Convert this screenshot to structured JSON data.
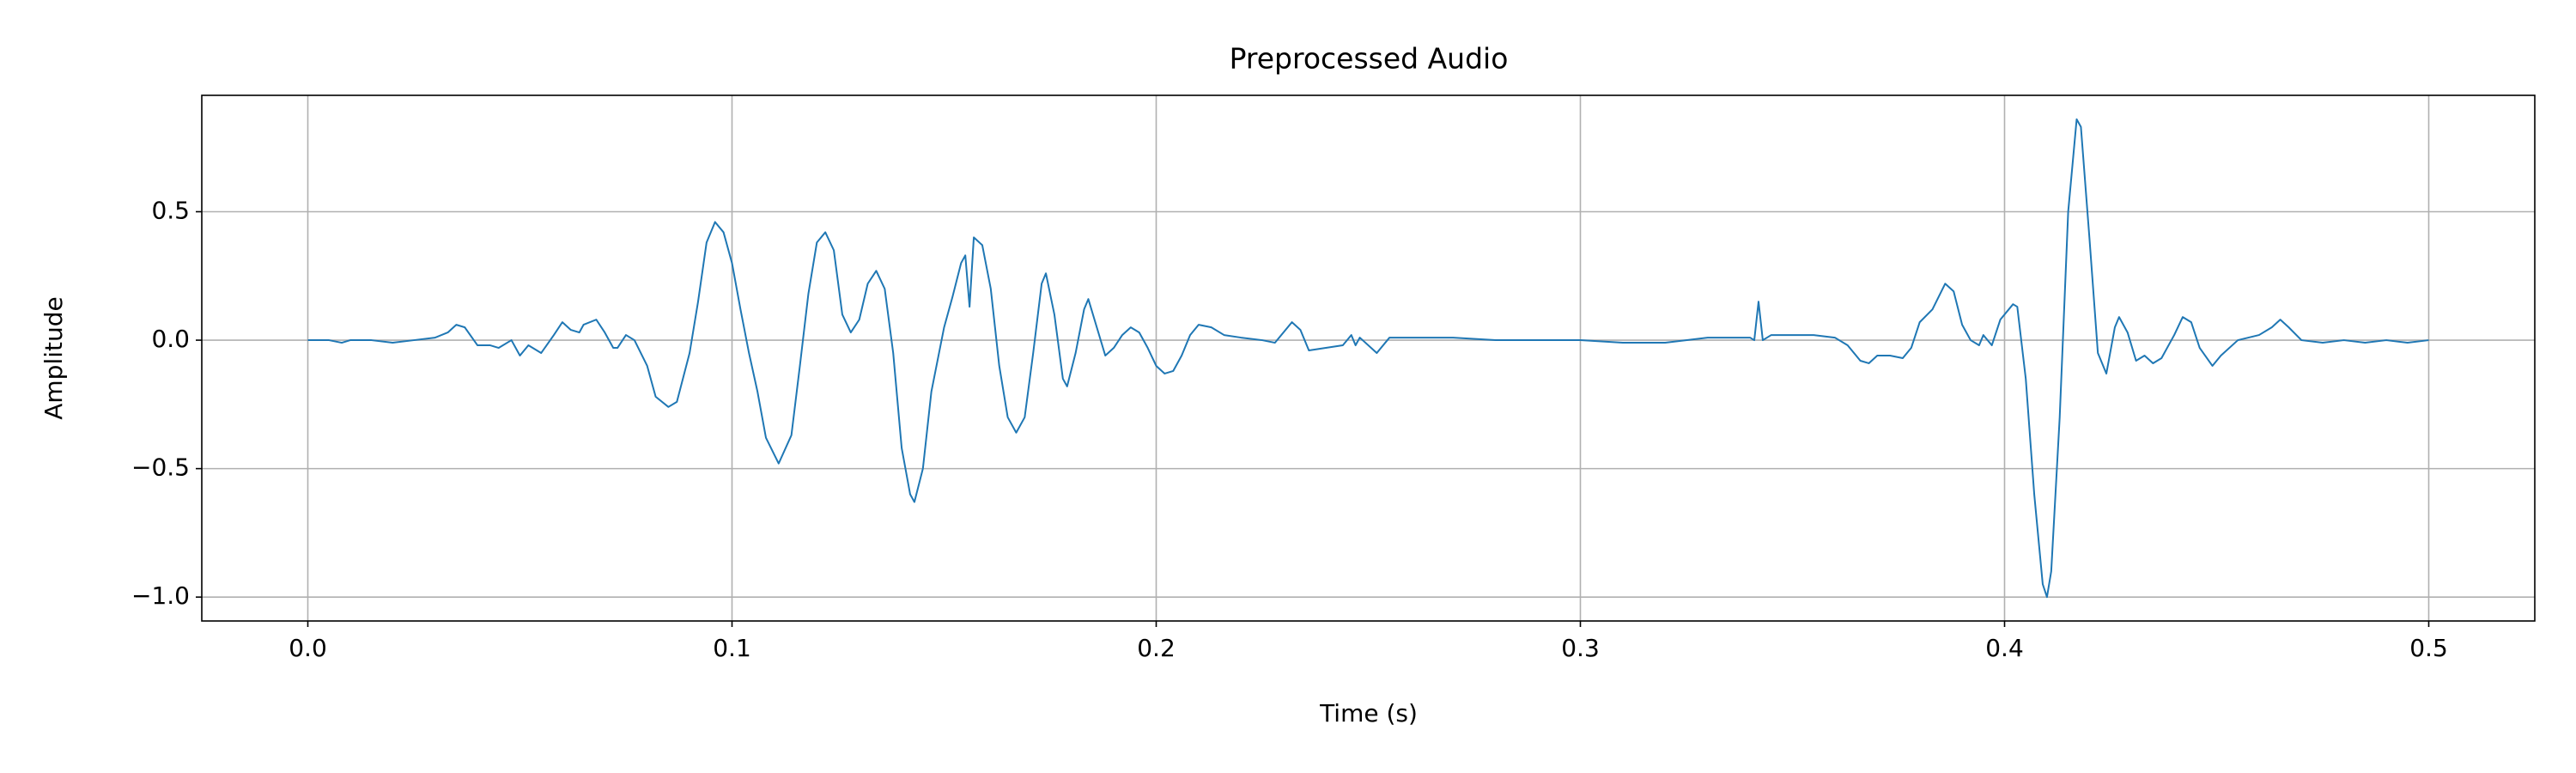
{
  "chart_data": {
    "type": "line",
    "title": "Preprocessed Audio",
    "xlabel": "Time (s)",
    "ylabel": "Amplitude",
    "color": "#1f77b4",
    "grid": true,
    "xlim": [
      -0.025,
      0.525
    ],
    "ylim": [
      -1.093,
      0.953
    ],
    "xticks": [
      {
        "value": 0,
        "label": "0.0"
      },
      {
        "value": 0.1,
        "label": "0.1"
      },
      {
        "value": 0.2,
        "label": "0.2"
      },
      {
        "value": 0.3,
        "label": "0.3"
      },
      {
        "value": 0.4,
        "label": "0.4"
      },
      {
        "value": 0.5,
        "label": "0.5"
      }
    ],
    "yticks": [
      {
        "value": -1,
        "label": "−1.0"
      },
      {
        "value": -0.5,
        "label": "−0.5"
      },
      {
        "value": 0,
        "label": "0.0"
      },
      {
        "value": 0.5,
        "label": "0.5"
      }
    ],
    "x": [
      0.0,
      0.005,
      0.008,
      0.01,
      0.015,
      0.02,
      0.025,
      0.03,
      0.033,
      0.035,
      0.037,
      0.04,
      0.043,
      0.045,
      0.048,
      0.05,
      0.052,
      0.055,
      0.058,
      0.06,
      0.062,
      0.064,
      0.065,
      0.068,
      0.07,
      0.072,
      0.073,
      0.075,
      0.077,
      0.08,
      0.082,
      0.085,
      0.087,
      0.09,
      0.092,
      0.094,
      0.096,
      0.098,
      0.1,
      0.102,
      0.104,
      0.106,
      0.108,
      0.111,
      0.114,
      0.116,
      0.118,
      0.12,
      0.122,
      0.124,
      0.126,
      0.128,
      0.13,
      0.132,
      0.134,
      0.136,
      0.138,
      0.14,
      0.142,
      0.143,
      0.145,
      0.147,
      0.15,
      0.152,
      0.154,
      0.155,
      0.156,
      0.157,
      0.159,
      0.161,
      0.163,
      0.165,
      0.167,
      0.169,
      0.171,
      0.173,
      0.174,
      0.176,
      0.178,
      0.179,
      0.181,
      0.183,
      0.184,
      0.186,
      0.188,
      0.19,
      0.192,
      0.194,
      0.196,
      0.198,
      0.2,
      0.202,
      0.204,
      0.206,
      0.208,
      0.21,
      0.213,
      0.216,
      0.22,
      0.225,
      0.228,
      0.232,
      0.234,
      0.236,
      0.24,
      0.244,
      0.246,
      0.247,
      0.248,
      0.252,
      0.255,
      0.26,
      0.27,
      0.28,
      0.29,
      0.3,
      0.31,
      0.32,
      0.33,
      0.34,
      0.341,
      0.342,
      0.343,
      0.345,
      0.35,
      0.355,
      0.36,
      0.363,
      0.366,
      0.368,
      0.37,
      0.373,
      0.376,
      0.378,
      0.38,
      0.383,
      0.386,
      0.388,
      0.39,
      0.392,
      0.394,
      0.395,
      0.397,
      0.399,
      0.402,
      0.403,
      0.405,
      0.407,
      0.409,
      0.41,
      0.411,
      0.413,
      0.415,
      0.417,
      0.418,
      0.42,
      0.422,
      0.424,
      0.426,
      0.427,
      0.429,
      0.431,
      0.433,
      0.435,
      0.437,
      0.44,
      0.442,
      0.444,
      0.446,
      0.449,
      0.451,
      0.455,
      0.46,
      0.463,
      0.465,
      0.467,
      0.47,
      0.475,
      0.48,
      0.485,
      0.49,
      0.495,
      0.5
    ],
    "values": [
      0,
      0,
      -0.01,
      0,
      0,
      -0.01,
      0,
      0.01,
      0.03,
      0.06,
      0.05,
      -0.02,
      -0.02,
      -0.03,
      0,
      -0.06,
      -0.02,
      -0.05,
      0.02,
      0.07,
      0.04,
      0.03,
      0.06,
      0.08,
      0.03,
      -0.03,
      -0.03,
      0.02,
      0,
      -0.1,
      -0.22,
      -0.26,
      -0.24,
      -0.05,
      0.15,
      0.38,
      0.46,
      0.42,
      0.3,
      0.12,
      -0.05,
      -0.2,
      -0.38,
      -0.48,
      -0.37,
      -0.1,
      0.18,
      0.38,
      0.42,
      0.35,
      0.1,
      0.03,
      0.08,
      0.22,
      0.27,
      0.2,
      -0.05,
      -0.42,
      -0.6,
      -0.63,
      -0.5,
      -0.2,
      0.05,
      0.17,
      0.3,
      0.33,
      0.13,
      0.4,
      0.37,
      0.2,
      -0.1,
      -0.3,
      -0.36,
      -0.3,
      -0.05,
      0.22,
      0.26,
      0.1,
      -0.15,
      -0.18,
      -0.05,
      0.12,
      0.16,
      0.05,
      -0.06,
      -0.03,
      0.02,
      0.05,
      0.03,
      -0.03,
      -0.1,
      -0.13,
      -0.12,
      -0.06,
      0.02,
      0.06,
      0.05,
      0.02,
      0.01,
      0,
      -0.01,
      0.07,
      0.04,
      -0.04,
      -0.03,
      -0.02,
      0.02,
      -0.02,
      0.01,
      -0.05,
      0.01,
      0.01,
      0.01,
      0,
      0,
      0,
      -0.01,
      -0.01,
      0.01,
      0.01,
      0,
      0.15,
      0,
      0.02,
      0.02,
      0.02,
      0.01,
      -0.02,
      -0.08,
      -0.09,
      -0.06,
      -0.06,
      -0.07,
      -0.03,
      0.07,
      0.12,
      0.22,
      0.19,
      0.06,
      0,
      -0.02,
      0.02,
      -0.02,
      0.08,
      0.14,
      0.13,
      -0.15,
      -0.6,
      -0.95,
      -1.0,
      -0.9,
      -0.3,
      0.5,
      0.86,
      0.83,
      0.4,
      -0.05,
      -0.13,
      0.05,
      0.09,
      0.03,
      -0.08,
      -0.06,
      -0.09,
      -0.07,
      0.02,
      0.09,
      0.07,
      -0.03,
      -0.1,
      -0.06,
      0,
      0.02,
      0.05,
      0.08,
      0.05,
      0,
      -0.01,
      0,
      -0.01,
      0,
      -0.01,
      0
    ]
  }
}
